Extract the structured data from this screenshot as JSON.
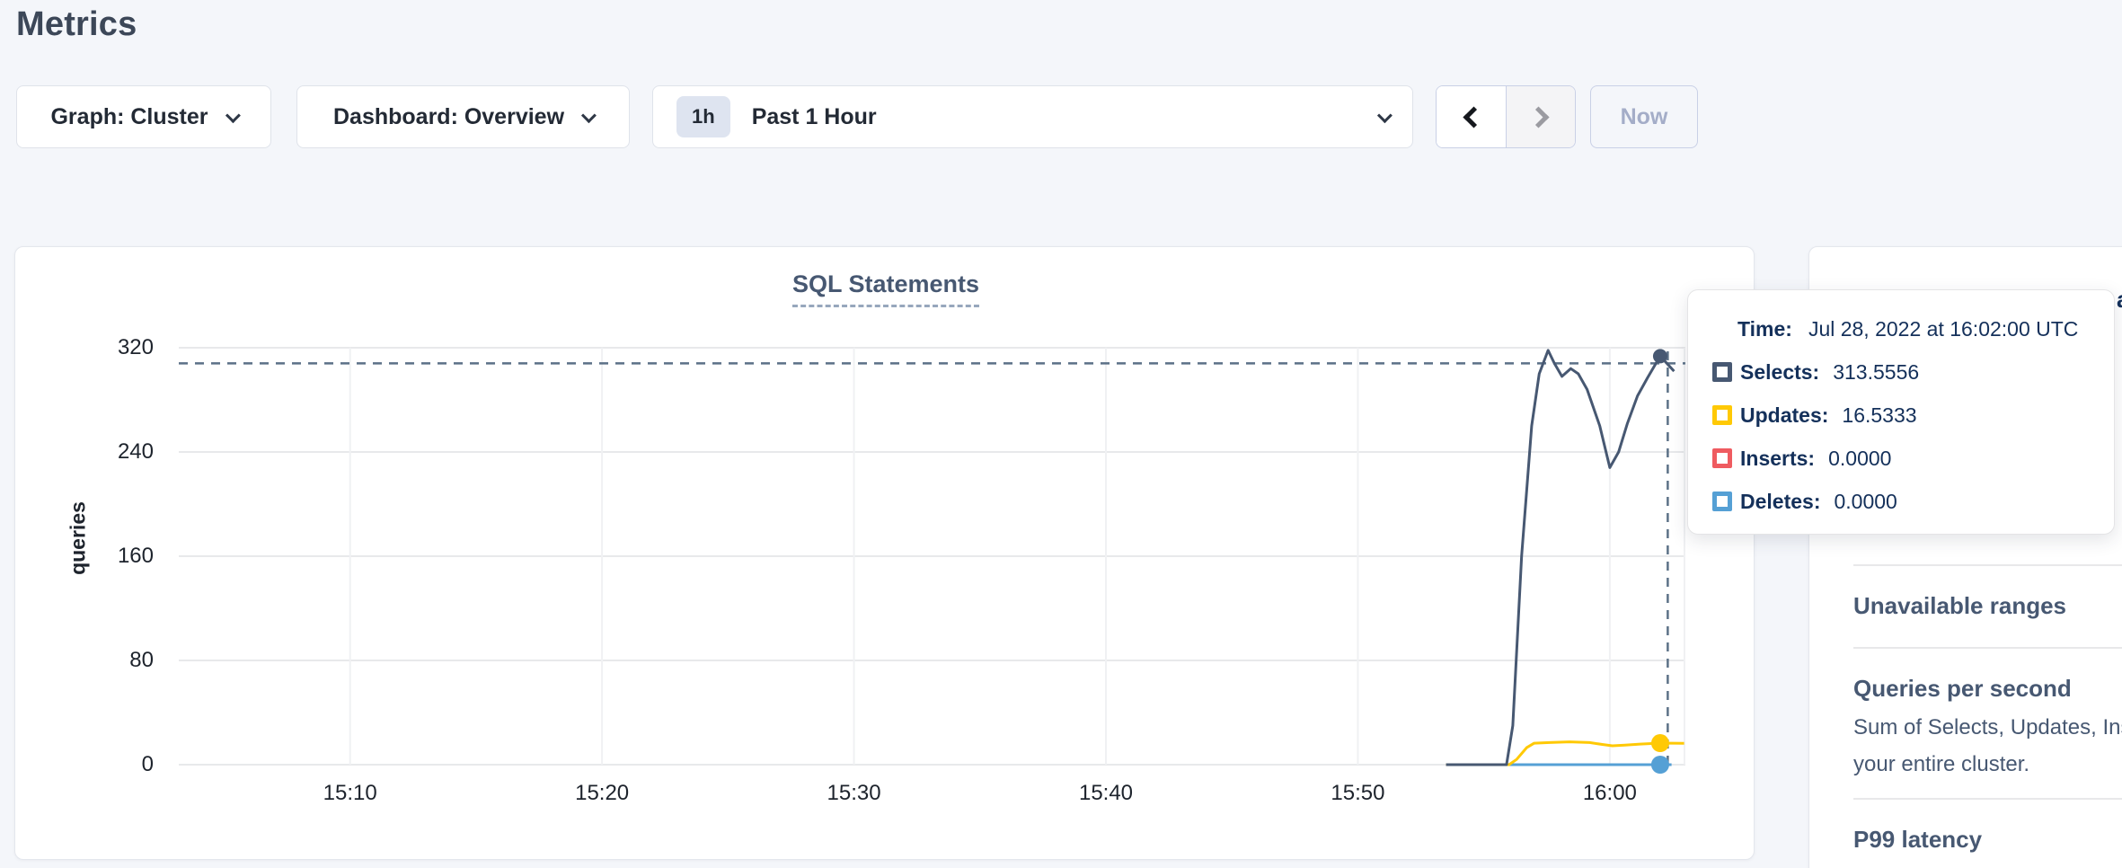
{
  "page": {
    "title": "Metrics"
  },
  "toolbar": {
    "graph_selector_label": "Graph: Cluster",
    "dashboard_selector_label": "Dashboard: Overview",
    "time_badge": "1h",
    "time_label": "Past 1 Hour",
    "now_label": "Now"
  },
  "chart_data": {
    "type": "line",
    "title": "SQL Statements",
    "ylabel": "queries",
    "xlabel": "",
    "ylim": [
      0,
      320
    ],
    "y_ticks": [
      0,
      80,
      160,
      240,
      320
    ],
    "x_domain_minutes_after_1500": [
      3.2,
      63.0
    ],
    "x_ticks": [
      {
        "label": "15:10",
        "t": 10
      },
      {
        "label": "15:20",
        "t": 20
      },
      {
        "label": "15:30",
        "t": 30
      },
      {
        "label": "15:40",
        "t": 40
      },
      {
        "label": "15:50",
        "t": 50
      },
      {
        "label": "16:00",
        "t": 60
      }
    ],
    "grid": true,
    "legend_position": "none",
    "series": [
      {
        "name": "Inserts",
        "color": "#ef5b60",
        "points": [
          [
            53.5,
            0
          ],
          [
            62.2,
            0
          ]
        ]
      },
      {
        "name": "Deletes",
        "color": "#55a0d5",
        "points": [
          [
            53.5,
            0
          ],
          [
            62.45,
            0
          ]
        ]
      },
      {
        "name": "Updates",
        "color": "#ffc905",
        "points": [
          [
            53.5,
            0
          ],
          [
            56.0,
            0
          ],
          [
            56.3,
            4
          ],
          [
            56.7,
            13
          ],
          [
            57.0,
            16.5
          ],
          [
            57.6,
            17
          ],
          [
            58.4,
            17.5
          ],
          [
            59.2,
            17
          ],
          [
            59.7,
            15.5
          ],
          [
            60.1,
            14.5
          ],
          [
            60.6,
            15
          ],
          [
            61.2,
            15.8
          ],
          [
            62.0,
            16.5333
          ],
          [
            62.95,
            16.4
          ]
        ]
      },
      {
        "name": "Selects",
        "color": "#475872",
        "points": [
          [
            53.5,
            0
          ],
          [
            55.9,
            0
          ],
          [
            56.15,
            30
          ],
          [
            56.5,
            160
          ],
          [
            56.9,
            260
          ],
          [
            57.2,
            300
          ],
          [
            57.55,
            318
          ],
          [
            57.8,
            308
          ],
          [
            58.1,
            298
          ],
          [
            58.45,
            304
          ],
          [
            58.75,
            300
          ],
          [
            59.1,
            288
          ],
          [
            59.6,
            260
          ],
          [
            60.0,
            228
          ],
          [
            60.35,
            240
          ],
          [
            60.7,
            262
          ],
          [
            61.1,
            283
          ],
          [
            61.5,
            297
          ],
          [
            62.0,
            313.5556
          ],
          [
            62.55,
            302
          ]
        ]
      }
    ],
    "highlight_dots": [
      {
        "series": "Selects",
        "t": 62.0,
        "value": 313.5556,
        "r": 8
      },
      {
        "series": "Updates",
        "t": 62.0,
        "value": 16.5333,
        "r": 10
      },
      {
        "series": "Deletes",
        "t": 62.0,
        "value": 0,
        "r": 10
      }
    ],
    "crosshair": {
      "t": 62.3,
      "value": 308,
      "color": "#5c7187"
    },
    "hover_time": "16:02"
  },
  "tooltip": {
    "time_label": "Time:",
    "time_value": "Jul 28, 2022 at 16:02:00 UTC",
    "rows": [
      {
        "label": "Selects:",
        "value": "313.5556",
        "color": "#475872"
      },
      {
        "label": "Updates:",
        "value": "16.5333",
        "color": "#ffc905"
      },
      {
        "label": "Inserts:",
        "value": "0.0000",
        "color": "#ef5b60"
      },
      {
        "label": "Deletes:",
        "value": "0.0000",
        "color": "#55a0d5"
      }
    ]
  },
  "sidebar": {
    "clipped_heading_fragment": "a",
    "sections": [
      {
        "heading": "Unavailable ranges",
        "body_lines": []
      },
      {
        "heading": "Queries per second",
        "body_lines": [
          "Sum of Selects, Updates, Inserts, and",
          "your entire cluster."
        ]
      },
      {
        "heading": "P99 latency",
        "body_lines": []
      }
    ]
  },
  "colors": {
    "page_bg": "#f4f6fa",
    "card_border": "#e4e7ed",
    "heading_slate": "#475872",
    "tooltip_text": "#14305a",
    "grid_horizontal": "#e8e9eb",
    "grid_vertical": "#f0f1f3",
    "selects": "#475872",
    "updates": "#ffc905",
    "inserts": "#ef5b60",
    "deletes": "#55a0d5",
    "crosshair": "#5c7187"
  }
}
